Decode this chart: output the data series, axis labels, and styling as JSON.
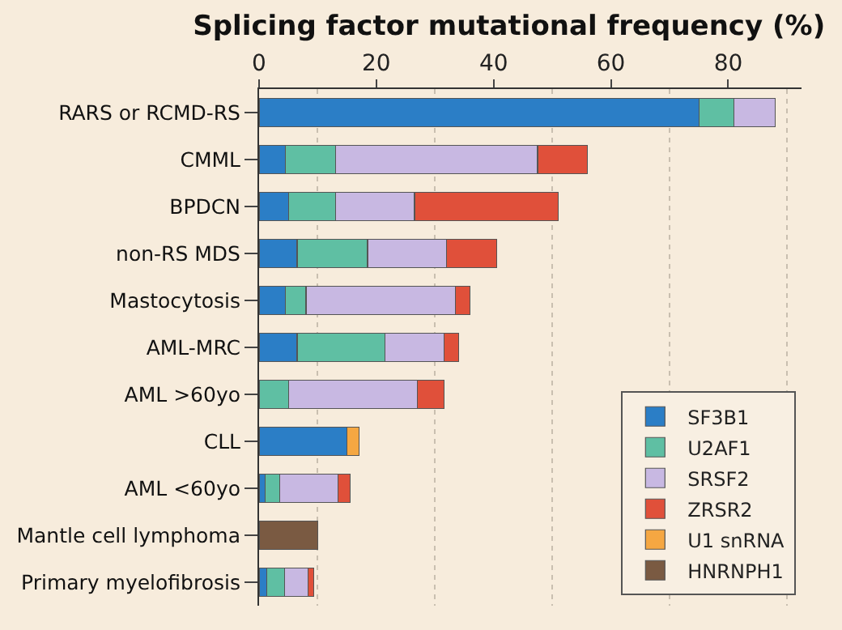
{
  "chart_data": {
    "type": "bar",
    "orientation": "horizontal",
    "stacked": true,
    "title": "Splicing factor mutational frequency (%)",
    "categories": [
      "RARS or RCMD-RS",
      "CMML",
      "BPDCN",
      "non-RS MDS",
      "Mastocytosis",
      "AML-MRC",
      "AML >60yo",
      "CLL",
      "AML <60yo",
      "Mantle cell lymphoma",
      "Primary myelofibrosis"
    ],
    "series": [
      {
        "name": "SF3B1",
        "color": "#2b7ec6",
        "values": [
          75,
          4.5,
          5,
          6.5,
          4.5,
          6.5,
          null,
          15,
          1,
          null,
          1.3
        ]
      },
      {
        "name": "U2AF1",
        "color": "#5fbfa3",
        "values": [
          6,
          8.5,
          8,
          12,
          3.5,
          15,
          5,
          null,
          2.5,
          null,
          3
        ]
      },
      {
        "name": "SRSF2",
        "color": "#c8b8e2",
        "values": [
          7,
          34.5,
          13.5,
          13.5,
          25.5,
          10,
          22,
          null,
          10,
          null,
          4
        ]
      },
      {
        "name": "ZRSR2",
        "color": "#e0503a",
        "values": [
          null,
          8.5,
          24.5,
          8.5,
          2.5,
          2.5,
          4.5,
          null,
          2,
          null,
          1
        ]
      },
      {
        "name": "U1 snRNA",
        "color": "#f5a742",
        "values": [
          null,
          null,
          null,
          null,
          null,
          null,
          null,
          2,
          null,
          null,
          null
        ]
      },
      {
        "name": "HNRNPH1",
        "color": "#7a5a42",
        "values": [
          null,
          null,
          null,
          null,
          null,
          null,
          null,
          null,
          null,
          10,
          null
        ]
      }
    ],
    "xlim": [
      0,
      92.5
    ],
    "xticks": [
      0,
      20,
      40,
      60,
      80
    ],
    "grid": "x",
    "legend": "bottom right"
  }
}
